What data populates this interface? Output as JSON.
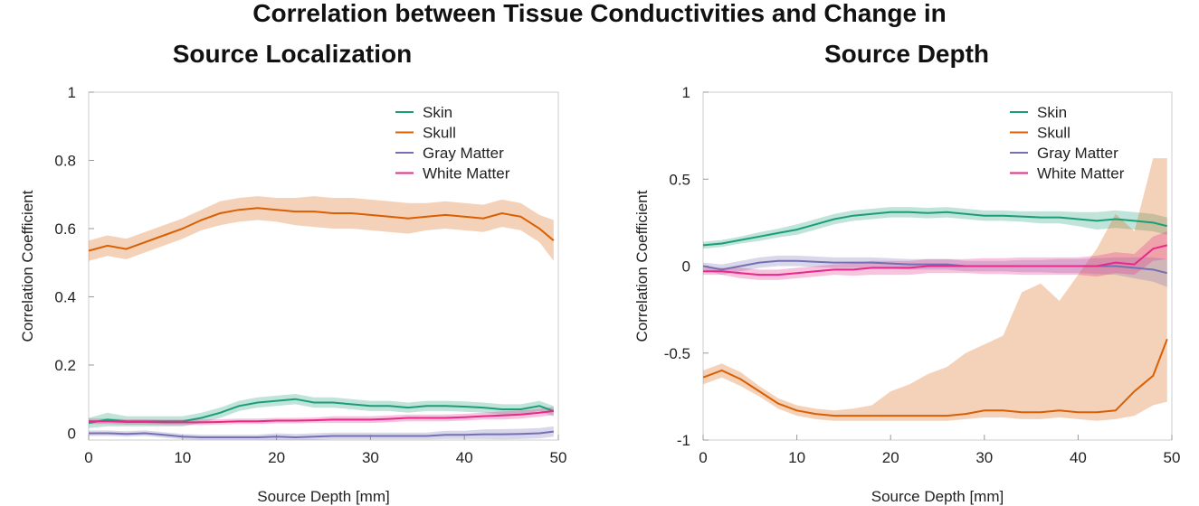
{
  "title": "Correlation between Tissue Conductivities and Change in",
  "colors": {
    "skin": "#1b9e77",
    "skull": "#d95f02",
    "gray_matter": "#7570b3",
    "white_matter": "#e7298a"
  },
  "chart_data": [
    {
      "type": "line",
      "title": "Source Localization",
      "xlabel": "Source Depth [mm]",
      "ylabel": "Correlation Coefficient",
      "xlim": [
        0,
        50
      ],
      "ylim": [
        -0.02,
        1
      ],
      "xticks": [
        "0",
        "10",
        "20",
        "30",
        "40",
        "50"
      ],
      "xtick_values": [
        0,
        10,
        20,
        30,
        40,
        50
      ],
      "yticks": [
        "0",
        "0.2",
        "0.4",
        "0.6",
        "0.8",
        "1"
      ],
      "ytick_values": [
        0,
        0.2,
        0.4,
        0.6,
        0.8,
        1
      ],
      "legend_position": "top-right",
      "x": [
        0,
        2,
        4,
        6,
        8,
        10,
        12,
        14,
        16,
        18,
        20,
        22,
        24,
        26,
        28,
        30,
        32,
        34,
        36,
        38,
        40,
        42,
        44,
        46,
        48,
        49.5
      ],
      "series": [
        {
          "name": "Skin",
          "color_key": "skin",
          "values": [
            0.03,
            0.04,
            0.035,
            0.035,
            0.035,
            0.035,
            0.045,
            0.06,
            0.08,
            0.09,
            0.095,
            0.1,
            0.09,
            0.09,
            0.085,
            0.08,
            0.08,
            0.075,
            0.08,
            0.08,
            0.078,
            0.075,
            0.07,
            0.07,
            0.08,
            0.065
          ],
          "band": [
            0.015,
            0.02,
            0.015,
            0.015,
            0.015,
            0.015,
            0.015,
            0.015,
            0.015,
            0.015,
            0.015,
            0.015,
            0.015,
            0.015,
            0.015,
            0.015,
            0.015,
            0.015,
            0.015,
            0.015,
            0.015,
            0.015,
            0.015,
            0.015,
            0.015,
            0.015
          ]
        },
        {
          "name": "Skull",
          "color_key": "skull",
          "values": [
            0.535,
            0.55,
            0.54,
            0.56,
            0.58,
            0.6,
            0.625,
            0.645,
            0.655,
            0.66,
            0.655,
            0.65,
            0.65,
            0.645,
            0.645,
            0.64,
            0.635,
            0.63,
            0.635,
            0.64,
            0.635,
            0.63,
            0.645,
            0.635,
            0.6,
            0.565
          ],
          "band": [
            0.03,
            0.03,
            0.03,
            0.03,
            0.03,
            0.03,
            0.03,
            0.035,
            0.035,
            0.035,
            0.035,
            0.04,
            0.045,
            0.045,
            0.045,
            0.045,
            0.045,
            0.045,
            0.04,
            0.04,
            0.04,
            0.04,
            0.04,
            0.04,
            0.04,
            0.06
          ]
        },
        {
          "name": "Gray Matter",
          "color_key": "gray_matter",
          "values": [
            0.0,
            0.0,
            -0.002,
            0.0,
            -0.005,
            -0.01,
            -0.012,
            -0.012,
            -0.012,
            -0.012,
            -0.01,
            -0.012,
            -0.01,
            -0.008,
            -0.008,
            -0.008,
            -0.008,
            -0.008,
            -0.008,
            -0.005,
            -0.005,
            -0.003,
            -0.003,
            -0.002,
            0.0,
            0.005
          ],
          "band": [
            0.008,
            0.008,
            0.008,
            0.008,
            0.008,
            0.008,
            0.008,
            0.008,
            0.008,
            0.008,
            0.01,
            0.01,
            0.01,
            0.01,
            0.01,
            0.01,
            0.01,
            0.01,
            0.01,
            0.012,
            0.012,
            0.014,
            0.015,
            0.015,
            0.015,
            0.015
          ]
        },
        {
          "name": "White Matter",
          "color_key": "white_matter",
          "values": [
            0.035,
            0.035,
            0.033,
            0.033,
            0.032,
            0.032,
            0.032,
            0.033,
            0.035,
            0.035,
            0.037,
            0.037,
            0.038,
            0.04,
            0.04,
            0.04,
            0.042,
            0.045,
            0.045,
            0.045,
            0.047,
            0.05,
            0.052,
            0.055,
            0.06,
            0.065
          ],
          "band": [
            0.008,
            0.008,
            0.008,
            0.008,
            0.008,
            0.008,
            0.008,
            0.008,
            0.008,
            0.008,
            0.008,
            0.008,
            0.008,
            0.01,
            0.01,
            0.01,
            0.01,
            0.01,
            0.01,
            0.01,
            0.01,
            0.01,
            0.012,
            0.012,
            0.012,
            0.012
          ]
        }
      ]
    },
    {
      "type": "line",
      "title": "Source Depth",
      "xlabel": "Source Depth [mm]",
      "ylabel": "Correlation Coefficient",
      "xlim": [
        0,
        50
      ],
      "ylim": [
        -1,
        1
      ],
      "xticks": [
        "0",
        "10",
        "20",
        "30",
        "40",
        "50"
      ],
      "xtick_values": [
        0,
        10,
        20,
        30,
        40,
        50
      ],
      "yticks": [
        "-1",
        "-0.5",
        "0",
        "0.5",
        "1"
      ],
      "ytick_values": [
        -1,
        -0.5,
        0,
        0.5,
        1
      ],
      "legend_position": "top-right",
      "x": [
        0,
        2,
        4,
        6,
        8,
        10,
        12,
        14,
        16,
        18,
        20,
        22,
        24,
        26,
        28,
        30,
        32,
        34,
        36,
        38,
        40,
        42,
        44,
        46,
        48,
        49.5
      ],
      "series": [
        {
          "name": "Skin",
          "color_key": "skin",
          "values": [
            0.12,
            0.13,
            0.15,
            0.17,
            0.19,
            0.21,
            0.24,
            0.27,
            0.29,
            0.3,
            0.31,
            0.31,
            0.305,
            0.31,
            0.3,
            0.29,
            0.29,
            0.285,
            0.28,
            0.28,
            0.27,
            0.26,
            0.27,
            0.26,
            0.25,
            0.23
          ],
          "band": [
            0.02,
            0.02,
            0.02,
            0.025,
            0.025,
            0.03,
            0.03,
            0.03,
            0.03,
            0.03,
            0.03,
            0.03,
            0.03,
            0.03,
            0.03,
            0.03,
            0.03,
            0.03,
            0.035,
            0.035,
            0.04,
            0.05,
            0.05,
            0.05,
            0.05,
            0.05
          ]
        },
        {
          "name": "Skull",
          "color_key": "skull",
          "values": [
            -0.64,
            -0.6,
            -0.65,
            -0.72,
            -0.79,
            -0.83,
            -0.85,
            -0.86,
            -0.86,
            -0.86,
            -0.86,
            -0.86,
            -0.86,
            -0.86,
            -0.85,
            -0.83,
            -0.83,
            -0.84,
            -0.84,
            -0.83,
            -0.84,
            -0.84,
            -0.83,
            -0.72,
            -0.63,
            -0.42
          ],
          "upper": [
            -0.6,
            -0.56,
            -0.61,
            -0.69,
            -0.76,
            -0.8,
            -0.82,
            -0.83,
            -0.82,
            -0.8,
            -0.72,
            -0.68,
            -0.62,
            -0.58,
            -0.5,
            -0.45,
            -0.4,
            -0.15,
            -0.1,
            -0.2,
            -0.05,
            0.1,
            0.3,
            0.2,
            0.62,
            0.62
          ],
          "lower": [
            -0.68,
            -0.64,
            -0.69,
            -0.75,
            -0.82,
            -0.86,
            -0.88,
            -0.89,
            -0.89,
            -0.89,
            -0.89,
            -0.89,
            -0.89,
            -0.89,
            -0.88,
            -0.87,
            -0.87,
            -0.88,
            -0.88,
            -0.87,
            -0.88,
            -0.89,
            -0.88,
            -0.86,
            -0.8,
            -0.78
          ]
        },
        {
          "name": "Gray Matter",
          "color_key": "gray_matter",
          "values": [
            0.0,
            -0.02,
            0.0,
            0.02,
            0.03,
            0.03,
            0.025,
            0.02,
            0.02,
            0.02,
            0.015,
            0.01,
            0.01,
            0.01,
            0.0,
            0.0,
            0.0,
            0.0,
            0.0,
            0.0,
            0.0,
            0.0,
            0.0,
            -0.01,
            -0.02,
            -0.04
          ],
          "band": [
            0.02,
            0.03,
            0.03,
            0.03,
            0.03,
            0.03,
            0.03,
            0.03,
            0.03,
            0.03,
            0.03,
            0.03,
            0.03,
            0.03,
            0.03,
            0.03,
            0.03,
            0.035,
            0.035,
            0.04,
            0.04,
            0.045,
            0.05,
            0.06,
            0.07,
            0.08
          ]
        },
        {
          "name": "White Matter",
          "color_key": "white_matter",
          "values": [
            -0.03,
            -0.03,
            -0.04,
            -0.05,
            -0.05,
            -0.04,
            -0.03,
            -0.02,
            -0.02,
            -0.01,
            -0.01,
            -0.01,
            0.0,
            0.0,
            0.0,
            0.0,
            0.0,
            0.0,
            0.0,
            0.0,
            0.0,
            0.0,
            0.02,
            0.01,
            0.1,
            0.12
          ],
          "band": [
            0.02,
            0.02,
            0.03,
            0.03,
            0.03,
            0.03,
            0.03,
            0.03,
            0.035,
            0.04,
            0.04,
            0.04,
            0.04,
            0.04,
            0.04,
            0.045,
            0.045,
            0.05,
            0.05,
            0.05,
            0.05,
            0.06,
            0.06,
            0.06,
            0.07,
            0.08
          ]
        }
      ]
    }
  ]
}
